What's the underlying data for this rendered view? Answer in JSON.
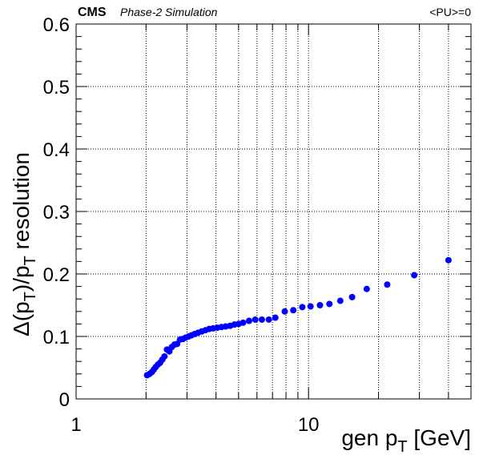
{
  "header": {
    "experiment": "CMS",
    "subtitle": "Phase-2 Simulation",
    "pileup": "<PU>=0"
  },
  "chart_data": {
    "type": "scatter",
    "x_scale": "log",
    "xlim": [
      1,
      50
    ],
    "ylim": [
      0,
      0.6
    ],
    "grid": true,
    "xlabel": {
      "main": "gen p",
      "sub": "T",
      "unit": " [GeV]"
    },
    "ylabel": {
      "pre": "Δ(p",
      "sub1": "T",
      "mid": ")/p",
      "sub2": "T",
      "post": " resolution"
    },
    "x_ticks": [
      {
        "value": 1,
        "label": "1"
      },
      {
        "value": 10,
        "label": "10"
      }
    ],
    "y_ticks": [
      {
        "value": 0,
        "label": "0"
      },
      {
        "value": 0.1,
        "label": "0.1"
      },
      {
        "value": 0.2,
        "label": "0.2"
      },
      {
        "value": 0.3,
        "label": "0.3"
      },
      {
        "value": 0.4,
        "label": "0.4"
      },
      {
        "value": 0.5,
        "label": "0.5"
      },
      {
        "value": 0.6,
        "label": "0.6"
      }
    ],
    "marker_color": "#0000ff",
    "series": [
      {
        "points": [
          [
            2.02,
            0.038
          ],
          [
            2.07,
            0.04
          ],
          [
            2.12,
            0.043
          ],
          [
            2.16,
            0.047
          ],
          [
            2.2,
            0.051
          ],
          [
            2.25,
            0.055
          ],
          [
            2.3,
            0.058
          ],
          [
            2.35,
            0.063
          ],
          [
            2.4,
            0.068
          ],
          [
            2.46,
            0.079
          ],
          [
            2.52,
            0.076
          ],
          [
            2.58,
            0.083
          ],
          [
            2.65,
            0.087
          ],
          [
            2.72,
            0.088
          ],
          [
            2.8,
            0.095
          ],
          [
            2.88,
            0.096
          ],
          [
            2.96,
            0.098
          ],
          [
            3.05,
            0.1
          ],
          [
            3.14,
            0.102
          ],
          [
            3.24,
            0.104
          ],
          [
            3.35,
            0.106
          ],
          [
            3.47,
            0.108
          ],
          [
            3.6,
            0.11
          ],
          [
            3.74,
            0.112
          ],
          [
            3.89,
            0.113
          ],
          [
            4.05,
            0.114
          ],
          [
            4.22,
            0.115
          ],
          [
            4.4,
            0.116
          ],
          [
            4.6,
            0.117
          ],
          [
            4.8,
            0.119
          ],
          [
            5.0,
            0.12
          ],
          [
            5.23,
            0.122
          ],
          [
            5.55,
            0.125
          ],
          [
            5.9,
            0.127
          ],
          [
            6.3,
            0.127
          ],
          [
            6.75,
            0.127
          ],
          [
            7.2,
            0.13
          ],
          [
            7.9,
            0.14
          ],
          [
            8.6,
            0.142
          ],
          [
            9.4,
            0.147
          ],
          [
            10.2,
            0.148
          ],
          [
            11.2,
            0.15
          ],
          [
            12.3,
            0.152
          ],
          [
            13.7,
            0.157
          ],
          [
            15.4,
            0.163
          ],
          [
            17.8,
            0.176
          ],
          [
            21.8,
            0.183
          ],
          [
            28.5,
            0.198
          ],
          [
            40.0,
            0.222
          ]
        ]
      }
    ]
  }
}
